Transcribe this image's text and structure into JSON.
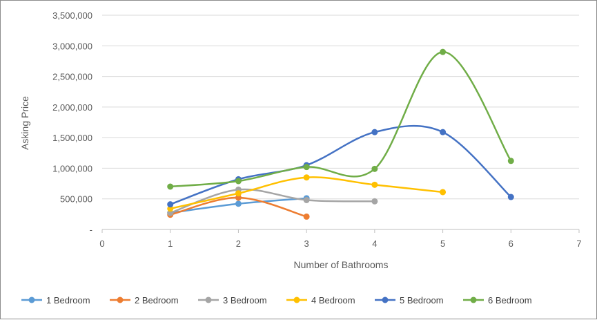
{
  "chart_data": {
    "type": "line",
    "title": "",
    "xlabel": "Number of Bathrooms",
    "ylabel": "Asking Price",
    "xlim": [
      0,
      7
    ],
    "ylim": [
      0,
      3500000
    ],
    "x_ticks": [
      0,
      1,
      2,
      3,
      4,
      5,
      6,
      7
    ],
    "y_ticks": [
      0,
      500000,
      1000000,
      1500000,
      2000000,
      2500000,
      3000000,
      3500000
    ],
    "y_tick_labels": [
      "-",
      "500,000",
      "1,000,000",
      "1,500,000",
      "2,000,000",
      "2,500,000",
      "3,000,000",
      "3,500,000"
    ],
    "grid": "horizontal",
    "legend_position": "bottom",
    "smoothed": true,
    "series": [
      {
        "name": "1 Bedroom",
        "color": "#5B9BD5",
        "points": [
          [
            1,
            270000
          ],
          [
            2,
            420000
          ],
          [
            3,
            510000
          ]
        ]
      },
      {
        "name": "2 Bedroom",
        "color": "#ED7D31",
        "points": [
          [
            1,
            240000
          ],
          [
            2,
            520000
          ],
          [
            3,
            210000
          ]
        ]
      },
      {
        "name": "3 Bedroom",
        "color": "#A5A5A5",
        "points": [
          [
            1,
            270000
          ],
          [
            2,
            650000
          ],
          [
            3,
            480000
          ],
          [
            4,
            460000
          ]
        ]
      },
      {
        "name": "4 Bedroom",
        "color": "#FFC000",
        "points": [
          [
            1,
            340000
          ],
          [
            2,
            590000
          ],
          [
            3,
            850000
          ],
          [
            4,
            730000
          ],
          [
            5,
            610000
          ]
        ]
      },
      {
        "name": "5 Bedroom",
        "color": "#4472C4",
        "points": [
          [
            1,
            410000
          ],
          [
            2,
            820000
          ],
          [
            3,
            1050000
          ],
          [
            4,
            1590000
          ],
          [
            5,
            1590000
          ],
          [
            6,
            530000
          ]
        ]
      },
      {
        "name": "6 Bedroom",
        "color": "#70AD47",
        "points": [
          [
            1,
            700000
          ],
          [
            2,
            790000
          ],
          [
            3,
            1020000
          ],
          [
            4,
            990000
          ],
          [
            5,
            2900000
          ],
          [
            6,
            1120000
          ]
        ]
      }
    ]
  }
}
